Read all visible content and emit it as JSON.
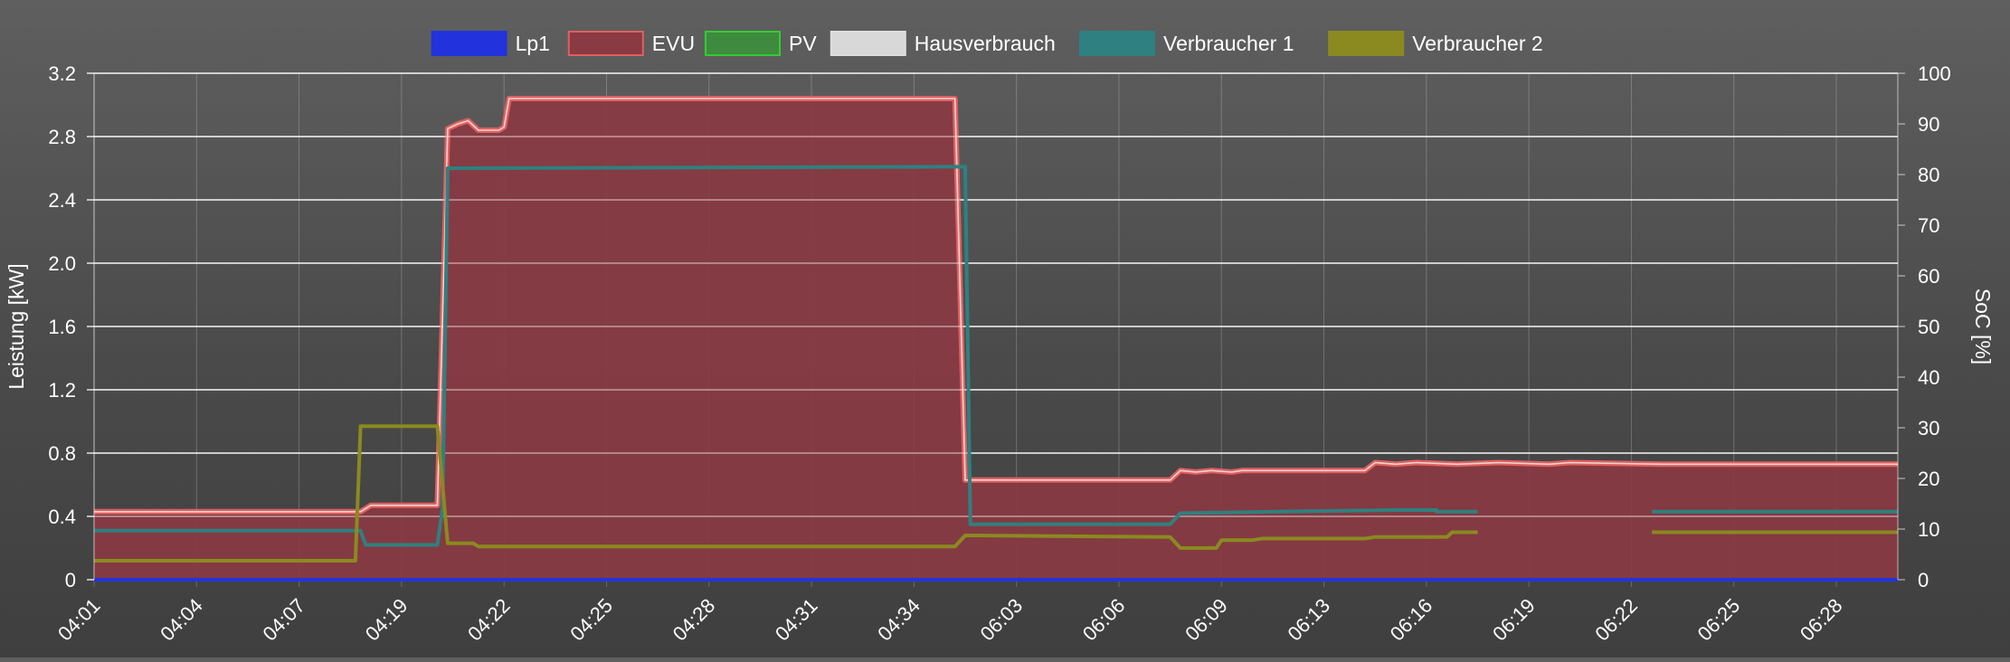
{
  "chart_data": {
    "type": "area",
    "legend_position": "top-center",
    "grid": true,
    "x_tick_labels": [
      "04:01",
      "04:04",
      "04:07",
      "04:19",
      "04:22",
      "04:25",
      "04:28",
      "04:31",
      "04:34",
      "06:03",
      "06:06",
      "06:09",
      "06:13",
      "06:16",
      "06:19",
      "06:22",
      "06:25",
      "06:28"
    ],
    "y_left": {
      "label": "Leistung [kW]",
      "ylim": [
        0,
        3.2
      ],
      "ticks": [
        "0",
        "0.4",
        "0.8",
        "1.2",
        "1.6",
        "2.0",
        "2.4",
        "2.8",
        "3.2"
      ]
    },
    "y_right": {
      "label": "SoC [%]",
      "ylim": [
        0,
        100
      ],
      "ticks": [
        "0",
        "10",
        "20",
        "30",
        "40",
        "50",
        "60",
        "70",
        "80",
        "90",
        "100"
      ]
    },
    "x_range": [
      0,
      17.6
    ],
    "series": [
      {
        "name": "Lp1",
        "color": "#2233dd",
        "type": "line",
        "points": [
          [
            0,
            0
          ],
          [
            17.6,
            0
          ]
        ]
      },
      {
        "name": "EVU",
        "color": "#e06060",
        "fill": "#8a3a42",
        "type": "area",
        "points": [
          [
            0,
            0.43
          ],
          [
            2.6,
            0.43
          ],
          [
            2.7,
            0.47
          ],
          [
            3.35,
            0.47
          ],
          [
            3.45,
            2.85
          ],
          [
            3.55,
            2.88
          ],
          [
            3.65,
            2.9
          ],
          [
            3.75,
            2.84
          ],
          [
            3.95,
            2.84
          ],
          [
            4.0,
            2.86
          ],
          [
            4.05,
            3.04
          ],
          [
            8.4,
            3.04
          ],
          [
            8.5,
            0.63
          ],
          [
            10.5,
            0.63
          ],
          [
            10.6,
            0.69
          ],
          [
            10.75,
            0.68
          ],
          [
            10.9,
            0.69
          ],
          [
            11.1,
            0.68
          ],
          [
            11.2,
            0.69
          ],
          [
            12.4,
            0.69
          ],
          [
            12.5,
            0.74
          ],
          [
            12.7,
            0.73
          ],
          [
            12.9,
            0.74
          ],
          [
            13.3,
            0.73
          ],
          [
            13.7,
            0.74
          ],
          [
            14.2,
            0.73
          ],
          [
            14.4,
            0.74
          ],
          [
            15.3,
            0.73
          ],
          [
            17.6,
            0.73
          ]
        ]
      },
      {
        "name": "PV",
        "color": "#33cc33",
        "fill": "#3e8a3e",
        "type": "area",
        "points": []
      },
      {
        "name": "Hausverbrauch",
        "color": "#dddddd",
        "fill": "#d8d8d8",
        "type": "area",
        "points": []
      },
      {
        "name": "Verbraucher 1",
        "color": "#2f8080",
        "fill": "#2f8080",
        "type": "line",
        "segments": [
          [
            [
              0,
              0.31
            ],
            [
              2.6,
              0.31
            ],
            [
              2.65,
              0.22
            ],
            [
              3.35,
              0.22
            ],
            [
              3.4,
              0.45
            ],
            [
              3.45,
              2.6
            ],
            [
              8.5,
              2.61
            ],
            [
              8.55,
              0.35
            ],
            [
              10.5,
              0.35
            ],
            [
              10.6,
              0.42
            ],
            [
              11.5,
              0.43
            ],
            [
              12.7,
              0.44
            ],
            [
              13.1,
              0.44
            ],
            [
              13.1,
              0.43
            ],
            [
              13.5,
              0.43
            ]
          ],
          [
            [
              15.2,
              0.43
            ],
            [
              17.6,
              0.43
            ]
          ]
        ]
      },
      {
        "name": "Verbraucher 2",
        "color": "#8a8a20",
        "fill": "#8a8a20",
        "type": "line",
        "segments": [
          [
            [
              0,
              0.12
            ],
            [
              2.55,
              0.12
            ],
            [
              2.6,
              0.97
            ],
            [
              3.35,
              0.97
            ],
            [
              3.45,
              0.23
            ],
            [
              3.7,
              0.23
            ],
            [
              3.75,
              0.21
            ],
            [
              8.4,
              0.21
            ],
            [
              8.5,
              0.28
            ],
            [
              10.5,
              0.27
            ],
            [
              10.6,
              0.2
            ],
            [
              10.95,
              0.2
            ],
            [
              11.0,
              0.25
            ],
            [
              11.3,
              0.25
            ],
            [
              11.4,
              0.26
            ],
            [
              12.4,
              0.26
            ],
            [
              12.5,
              0.27
            ],
            [
              13.2,
              0.27
            ],
            [
              13.25,
              0.3
            ],
            [
              13.5,
              0.3
            ]
          ],
          [
            [
              15.2,
              0.3
            ],
            [
              17.6,
              0.3
            ]
          ]
        ]
      }
    ]
  }
}
